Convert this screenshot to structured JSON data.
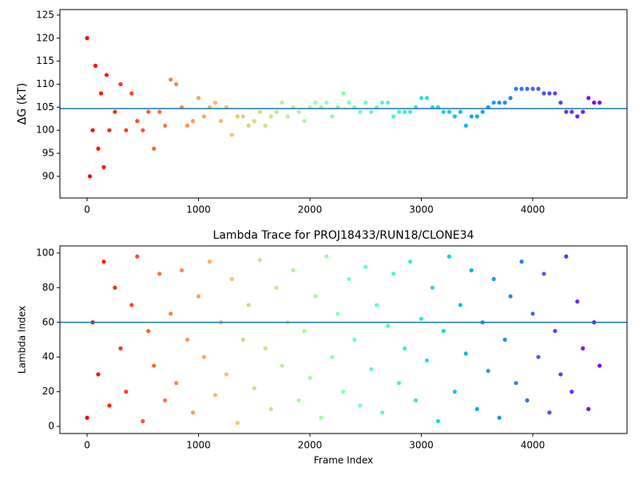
{
  "chart_data": [
    {
      "type": "scatter",
      "y_label": "ΔG (kT)",
      "colormap": "rainbow_r",
      "x": [
        0,
        25,
        50,
        75,
        100,
        125,
        150,
        175,
        200,
        250,
        300,
        350,
        400,
        450,
        500,
        550,
        600,
        650,
        700,
        750,
        800,
        850,
        900,
        950,
        1000,
        1050,
        1100,
        1150,
        1200,
        1250,
        1300,
        1350,
        1400,
        1450,
        1500,
        1550,
        1600,
        1650,
        1700,
        1750,
        1800,
        1850,
        1900,
        1950,
        2000,
        2050,
        2100,
        2150,
        2200,
        2250,
        2300,
        2350,
        2400,
        2450,
        2500,
        2550,
        2600,
        2650,
        2700,
        2750,
        2800,
        2850,
        2900,
        2950,
        3000,
        3050,
        3100,
        3150,
        3200,
        3250,
        3300,
        3350,
        3400,
        3450,
        3500,
        3550,
        3600,
        3650,
        3700,
        3750,
        3800,
        3850,
        3900,
        3950,
        4000,
        4050,
        4100,
        4150,
        4200,
        4250,
        4300,
        4350,
        4400,
        4450,
        4500,
        4550,
        4600
      ],
      "values": [
        120,
        90,
        100,
        114,
        96,
        108,
        92,
        112,
        100,
        104,
        110,
        100,
        108,
        102,
        100,
        104,
        96,
        104,
        101,
        111,
        110,
        105,
        101,
        102,
        107,
        103,
        105,
        106,
        102,
        105,
        99,
        103,
        103,
        101,
        102,
        104,
        101,
        103,
        104,
        106,
        103,
        105,
        104,
        102,
        105,
        106,
        105,
        106,
        103,
        105,
        108,
        106,
        105,
        104,
        106,
        104,
        105,
        106,
        106,
        103,
        104,
        104,
        104,
        105,
        107,
        107,
        105,
        105,
        104,
        104,
        103,
        104,
        101,
        103,
        103,
        104,
        105,
        106,
        106,
        106,
        107,
        109,
        109,
        109,
        109,
        109,
        108,
        108,
        108,
        106,
        104,
        104,
        103,
        104,
        107,
        106,
        106
      ],
      "hline": 104.7,
      "hline_color": "#1f77b4",
      "xlim": [
        -244,
        4846
      ],
      "ylim": [
        85.3,
        126.2
      ],
      "xticks": [
        0,
        1000,
        2000,
        3000,
        4000
      ],
      "yticks": [
        90,
        95,
        100,
        105,
        110,
        115,
        120,
        125
      ]
    },
    {
      "type": "scatter",
      "title": "Lambda Trace for PROJ18433/RUN18/CLONE34",
      "x_label": "Frame Index",
      "y_label": "Lambda Index",
      "colormap": "rainbow_r",
      "x": [
        0,
        50,
        100,
        150,
        200,
        250,
        300,
        350,
        400,
        450,
        500,
        550,
        600,
        650,
        700,
        750,
        800,
        850,
        900,
        950,
        1000,
        1050,
        1100,
        1150,
        1200,
        1250,
        1300,
        1350,
        1400,
        1450,
        1500,
        1550,
        1600,
        1650,
        1700,
        1750,
        1800,
        1850,
        1900,
        1950,
        2000,
        2050,
        2100,
        2150,
        2200,
        2250,
        2300,
        2350,
        2400,
        2450,
        2500,
        2550,
        2600,
        2650,
        2700,
        2750,
        2800,
        2850,
        2900,
        2950,
        3000,
        3050,
        3100,
        3150,
        3200,
        3250,
        3300,
        3350,
        3400,
        3450,
        3500,
        3550,
        3600,
        3650,
        3700,
        3750,
        3800,
        3850,
        3900,
        3950,
        4000,
        4050,
        4100,
        4150,
        4200,
        4250,
        4300,
        4350,
        4400,
        4450,
        4500,
        4550,
        4600
      ],
      "values": [
        5,
        60,
        30,
        95,
        12,
        80,
        45,
        20,
        70,
        98,
        3,
        55,
        35,
        88,
        15,
        65,
        25,
        90,
        50,
        8,
        75,
        40,
        95,
        18,
        60,
        30,
        85,
        2,
        50,
        70,
        22,
        96,
        45,
        10,
        80,
        35,
        60,
        90,
        15,
        55,
        28,
        75,
        5,
        98,
        40,
        65,
        20,
        85,
        50,
        12,
        92,
        33,
        70,
        8,
        58,
        88,
        25,
        45,
        95,
        15,
        62,
        38,
        80,
        3,
        55,
        98,
        20,
        70,
        42,
        90,
        10,
        60,
        32,
        85,
        5,
        50,
        75,
        25,
        95,
        15,
        65,
        40,
        88,
        8,
        55,
        30,
        98,
        20,
        72,
        45,
        10,
        60,
        35
      ],
      "hline": 60,
      "hline_color": "#1f77b4",
      "xlim": [
        -244,
        4846
      ],
      "ylim": [
        -4.1,
        104.1
      ],
      "xticks": [
        0,
        1000,
        2000,
        3000,
        4000
      ],
      "yticks": [
        0,
        20,
        40,
        60,
        80,
        100
      ]
    }
  ]
}
